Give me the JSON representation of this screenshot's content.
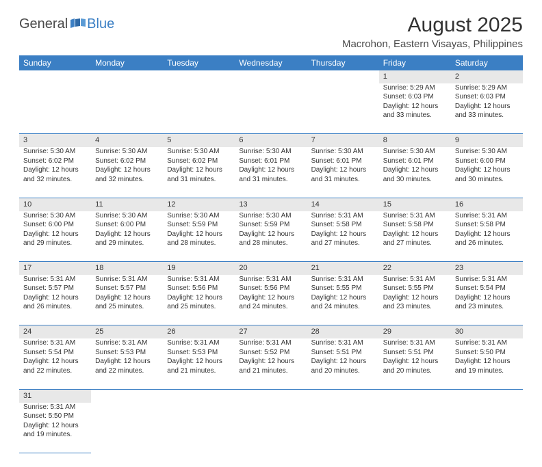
{
  "logo": {
    "text1": "General",
    "text2": "Blue",
    "color1": "#4a4a4a",
    "color2": "#3b7fc4"
  },
  "title": "August 2025",
  "location": "Macrohon, Eastern Visayas, Philippines",
  "colors": {
    "header_bg": "#3b7fc4",
    "header_text": "#ffffff",
    "daynum_bg": "#e8e8e8",
    "body_text": "#333333",
    "row_divider": "#3b7fc4",
    "page_bg": "#ffffff"
  },
  "typography": {
    "title_fontsize": 30,
    "location_fontsize": 15,
    "header_fontsize": 12,
    "daynum_fontsize": 11,
    "cell_fontsize": 10
  },
  "days_of_week": [
    "Sunday",
    "Monday",
    "Tuesday",
    "Wednesday",
    "Thursday",
    "Friday",
    "Saturday"
  ],
  "weeks": [
    [
      null,
      null,
      null,
      null,
      null,
      {
        "n": "1",
        "sr": "Sunrise: 5:29 AM",
        "ss": "Sunset: 6:03 PM",
        "d1": "Daylight: 12 hours",
        "d2": "and 33 minutes."
      },
      {
        "n": "2",
        "sr": "Sunrise: 5:29 AM",
        "ss": "Sunset: 6:03 PM",
        "d1": "Daylight: 12 hours",
        "d2": "and 33 minutes."
      }
    ],
    [
      {
        "n": "3",
        "sr": "Sunrise: 5:30 AM",
        "ss": "Sunset: 6:02 PM",
        "d1": "Daylight: 12 hours",
        "d2": "and 32 minutes."
      },
      {
        "n": "4",
        "sr": "Sunrise: 5:30 AM",
        "ss": "Sunset: 6:02 PM",
        "d1": "Daylight: 12 hours",
        "d2": "and 32 minutes."
      },
      {
        "n": "5",
        "sr": "Sunrise: 5:30 AM",
        "ss": "Sunset: 6:02 PM",
        "d1": "Daylight: 12 hours",
        "d2": "and 31 minutes."
      },
      {
        "n": "6",
        "sr": "Sunrise: 5:30 AM",
        "ss": "Sunset: 6:01 PM",
        "d1": "Daylight: 12 hours",
        "d2": "and 31 minutes."
      },
      {
        "n": "7",
        "sr": "Sunrise: 5:30 AM",
        "ss": "Sunset: 6:01 PM",
        "d1": "Daylight: 12 hours",
        "d2": "and 31 minutes."
      },
      {
        "n": "8",
        "sr": "Sunrise: 5:30 AM",
        "ss": "Sunset: 6:01 PM",
        "d1": "Daylight: 12 hours",
        "d2": "and 30 minutes."
      },
      {
        "n": "9",
        "sr": "Sunrise: 5:30 AM",
        "ss": "Sunset: 6:00 PM",
        "d1": "Daylight: 12 hours",
        "d2": "and 30 minutes."
      }
    ],
    [
      {
        "n": "10",
        "sr": "Sunrise: 5:30 AM",
        "ss": "Sunset: 6:00 PM",
        "d1": "Daylight: 12 hours",
        "d2": "and 29 minutes."
      },
      {
        "n": "11",
        "sr": "Sunrise: 5:30 AM",
        "ss": "Sunset: 6:00 PM",
        "d1": "Daylight: 12 hours",
        "d2": "and 29 minutes."
      },
      {
        "n": "12",
        "sr": "Sunrise: 5:30 AM",
        "ss": "Sunset: 5:59 PM",
        "d1": "Daylight: 12 hours",
        "d2": "and 28 minutes."
      },
      {
        "n": "13",
        "sr": "Sunrise: 5:30 AM",
        "ss": "Sunset: 5:59 PM",
        "d1": "Daylight: 12 hours",
        "d2": "and 28 minutes."
      },
      {
        "n": "14",
        "sr": "Sunrise: 5:31 AM",
        "ss": "Sunset: 5:58 PM",
        "d1": "Daylight: 12 hours",
        "d2": "and 27 minutes."
      },
      {
        "n": "15",
        "sr": "Sunrise: 5:31 AM",
        "ss": "Sunset: 5:58 PM",
        "d1": "Daylight: 12 hours",
        "d2": "and 27 minutes."
      },
      {
        "n": "16",
        "sr": "Sunrise: 5:31 AM",
        "ss": "Sunset: 5:58 PM",
        "d1": "Daylight: 12 hours",
        "d2": "and 26 minutes."
      }
    ],
    [
      {
        "n": "17",
        "sr": "Sunrise: 5:31 AM",
        "ss": "Sunset: 5:57 PM",
        "d1": "Daylight: 12 hours",
        "d2": "and 26 minutes."
      },
      {
        "n": "18",
        "sr": "Sunrise: 5:31 AM",
        "ss": "Sunset: 5:57 PM",
        "d1": "Daylight: 12 hours",
        "d2": "and 25 minutes."
      },
      {
        "n": "19",
        "sr": "Sunrise: 5:31 AM",
        "ss": "Sunset: 5:56 PM",
        "d1": "Daylight: 12 hours",
        "d2": "and 25 minutes."
      },
      {
        "n": "20",
        "sr": "Sunrise: 5:31 AM",
        "ss": "Sunset: 5:56 PM",
        "d1": "Daylight: 12 hours",
        "d2": "and 24 minutes."
      },
      {
        "n": "21",
        "sr": "Sunrise: 5:31 AM",
        "ss": "Sunset: 5:55 PM",
        "d1": "Daylight: 12 hours",
        "d2": "and 24 minutes."
      },
      {
        "n": "22",
        "sr": "Sunrise: 5:31 AM",
        "ss": "Sunset: 5:55 PM",
        "d1": "Daylight: 12 hours",
        "d2": "and 23 minutes."
      },
      {
        "n": "23",
        "sr": "Sunrise: 5:31 AM",
        "ss": "Sunset: 5:54 PM",
        "d1": "Daylight: 12 hours",
        "d2": "and 23 minutes."
      }
    ],
    [
      {
        "n": "24",
        "sr": "Sunrise: 5:31 AM",
        "ss": "Sunset: 5:54 PM",
        "d1": "Daylight: 12 hours",
        "d2": "and 22 minutes."
      },
      {
        "n": "25",
        "sr": "Sunrise: 5:31 AM",
        "ss": "Sunset: 5:53 PM",
        "d1": "Daylight: 12 hours",
        "d2": "and 22 minutes."
      },
      {
        "n": "26",
        "sr": "Sunrise: 5:31 AM",
        "ss": "Sunset: 5:53 PM",
        "d1": "Daylight: 12 hours",
        "d2": "and 21 minutes."
      },
      {
        "n": "27",
        "sr": "Sunrise: 5:31 AM",
        "ss": "Sunset: 5:52 PM",
        "d1": "Daylight: 12 hours",
        "d2": "and 21 minutes."
      },
      {
        "n": "28",
        "sr": "Sunrise: 5:31 AM",
        "ss": "Sunset: 5:51 PM",
        "d1": "Daylight: 12 hours",
        "d2": "and 20 minutes."
      },
      {
        "n": "29",
        "sr": "Sunrise: 5:31 AM",
        "ss": "Sunset: 5:51 PM",
        "d1": "Daylight: 12 hours",
        "d2": "and 20 minutes."
      },
      {
        "n": "30",
        "sr": "Sunrise: 5:31 AM",
        "ss": "Sunset: 5:50 PM",
        "d1": "Daylight: 12 hours",
        "d2": "and 19 minutes."
      }
    ],
    [
      {
        "n": "31",
        "sr": "Sunrise: 5:31 AM",
        "ss": "Sunset: 5:50 PM",
        "d1": "Daylight: 12 hours",
        "d2": "and 19 minutes."
      },
      null,
      null,
      null,
      null,
      null,
      null
    ]
  ]
}
